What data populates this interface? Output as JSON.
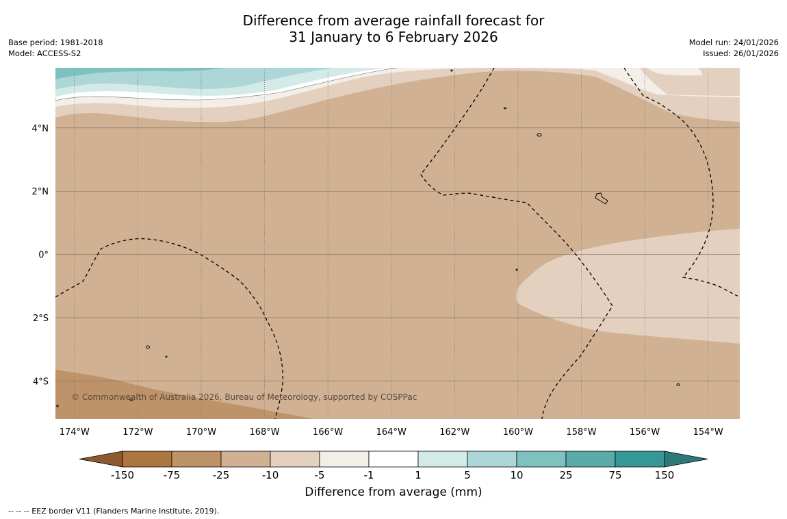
{
  "title": {
    "line1": "Difference from average rainfall forecast for",
    "line2": "31 January to 6 February 2026"
  },
  "meta_left": {
    "base_period": "Base period: 1981-2018",
    "model": "Model: ACCESS-S2"
  },
  "meta_right": {
    "model_run": "Model run: 24/01/2026",
    "issued": "Issued: 26/01/2026"
  },
  "map": {
    "lon_range": [
      -174.6,
      -153.0
    ],
    "lat_range": [
      -5.2,
      5.9
    ],
    "lon_ticks": [
      {
        "value": -174,
        "label": "174°W"
      },
      {
        "value": -172,
        "label": "172°W"
      },
      {
        "value": -170,
        "label": "170°W"
      },
      {
        "value": -168,
        "label": "168°W"
      },
      {
        "value": -166,
        "label": "166°W"
      },
      {
        "value": -164,
        "label": "164°W"
      },
      {
        "value": -162,
        "label": "162°W"
      },
      {
        "value": -160,
        "label": "160°W"
      },
      {
        "value": -158,
        "label": "158°W"
      },
      {
        "value": -156,
        "label": "156°W"
      },
      {
        "value": -154,
        "label": "154°W"
      }
    ],
    "lat_ticks": [
      {
        "value": 4,
        "label": "4°N"
      },
      {
        "value": 2,
        "label": "2°N"
      },
      {
        "value": 0,
        "label": "0°"
      },
      {
        "value": -2,
        "label": "2°S"
      },
      {
        "value": -4,
        "label": "4°S"
      }
    ],
    "copyright": "© Commonwealth of Australia 2026, Bureau of Meteorology, supported by COSPPac",
    "colors": {
      "background_anomaly": "#d1b193",
      "minus75_minus25": "#bf936a",
      "minus10_minus5": "#e3d0bf",
      "minus5_minus1": "#f3eee8",
      "minus1_1": "#ffffff",
      "p1_5": "#d4eae8",
      "p5_10": "#acd7d6",
      "p10_25": "#7fc1bf",
      "gridline": "#7a6a5a"
    }
  },
  "colorbar": {
    "title": "Difference from average (mm)",
    "labels": [
      "-150",
      "-75",
      "-25",
      "-10",
      "-5",
      "-1",
      "1",
      "5",
      "10",
      "25",
      "75",
      "150"
    ],
    "colors": [
      "#8c5a2e",
      "#ad7640",
      "#bf936a",
      "#d1b193",
      "#e3d0bf",
      "#f3eee8",
      "#ffffff",
      "#d4eae8",
      "#acd7d6",
      "#7fc1bf",
      "#5aaba8",
      "#359896",
      "#2c7a78"
    ]
  },
  "eez_note": "--  --  -- EEZ border V11 (Flanders Marine Institute, 2019)."
}
